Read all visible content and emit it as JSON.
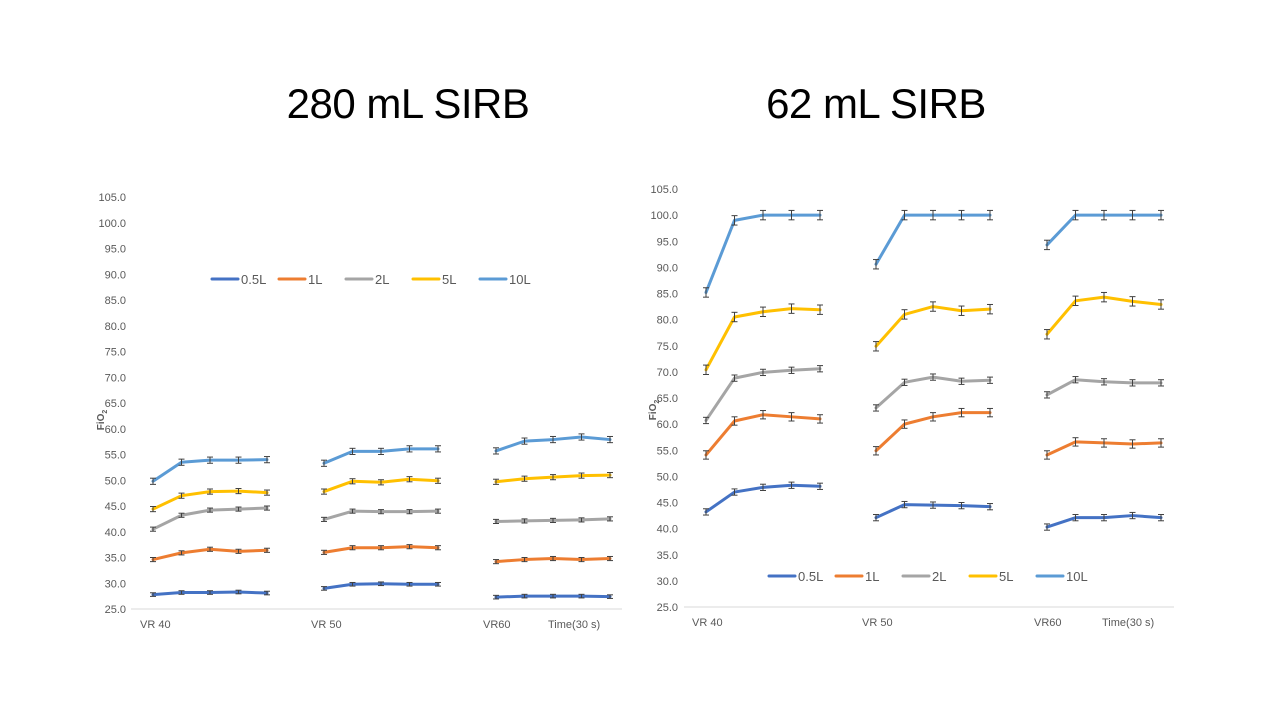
{
  "slide": {
    "title_left": "280 mL SIRB",
    "title_right": "62 mL SIRB"
  },
  "chart_data": [
    {
      "type": "line",
      "title": "280 mL SIRB",
      "ylabel": "FiO2",
      "ylim": [
        25,
        105
      ],
      "ytick_step": 5,
      "ytick_labels": [
        "25.0",
        "30.0",
        "35.0",
        "40.0",
        "45.0",
        "50.0",
        "55.0",
        "60.0",
        "65.0",
        "70.0",
        "75.0",
        "80.0",
        "85.0",
        "90.0",
        "95.0",
        "100.0",
        "105.0"
      ],
      "groups": [
        "VR 40",
        "VR 50",
        "VR60"
      ],
      "x_label": "Time(30 s)",
      "legend_position": "top-center",
      "grid": false,
      "error_bars": true,
      "series": [
        {
          "name": "0.5L",
          "color": "#4472c4",
          "values": [
            [
              27.8,
              28.2,
              28.2,
              28.3,
              28.1
            ],
            [
              29.0,
              29.8,
              29.9,
              29.8,
              29.8
            ],
            [
              27.3,
              27.5,
              27.5,
              27.5,
              27.4
            ]
          ],
          "error": 0.35
        },
        {
          "name": "1L",
          "color": "#ed7d31",
          "values": [
            [
              34.6,
              35.9,
              36.6,
              36.2,
              36.4
            ],
            [
              36.0,
              36.9,
              36.9,
              37.1,
              36.9
            ],
            [
              34.2,
              34.6,
              34.8,
              34.6,
              34.8
            ]
          ],
          "error": 0.4
        },
        {
          "name": "2L",
          "color": "#a5a5a5",
          "values": [
            [
              40.5,
              43.2,
              44.2,
              44.4,
              44.6
            ],
            [
              42.4,
              44.0,
              43.9,
              43.9,
              44.0
            ],
            [
              42.0,
              42.1,
              42.2,
              42.3,
              42.5
            ]
          ],
          "error": 0.4
        },
        {
          "name": "5L",
          "color": "#ffc000",
          "values": [
            [
              44.4,
              47.0,
              47.8,
              47.9,
              47.6
            ],
            [
              47.8,
              49.8,
              49.6,
              50.2,
              49.9
            ],
            [
              49.7,
              50.3,
              50.6,
              50.9,
              51.0
            ]
          ],
          "error": 0.5
        },
        {
          "name": "10L",
          "color": "#5b9bd5",
          "values": [
            [
              49.8,
              53.5,
              53.9,
              53.9,
              54.0
            ],
            [
              53.3,
              55.6,
              55.6,
              56.1,
              56.1
            ],
            [
              55.7,
              57.6,
              57.9,
              58.4,
              57.9
            ]
          ],
          "error": 0.6
        }
      ]
    },
    {
      "type": "line",
      "title": "62 mL SIRB",
      "ylabel": "FiO2",
      "ylim": [
        25,
        105
      ],
      "ytick_step": 5,
      "ytick_labels": [
        "25.0",
        "30.0",
        "35.0",
        "40.0",
        "45.0",
        "50.0",
        "55.0",
        "60.0",
        "65.0",
        "70.0",
        "75.0",
        "80.0",
        "85.0",
        "90.0",
        "95.0",
        "100.0",
        "105.0"
      ],
      "groups": [
        "VR 40",
        "VR 50",
        "VR60"
      ],
      "x_label": "Time(30 s)",
      "legend_position": "bottom-center",
      "grid": false,
      "error_bars": true,
      "series": [
        {
          "name": "0.5L",
          "color": "#4472c4",
          "values": [
            [
              43.2,
              47.0,
              47.9,
              48.3,
              48.1
            ],
            [
              42.1,
              44.6,
              44.5,
              44.4,
              44.2
            ],
            [
              40.3,
              42.1,
              42.1,
              42.5,
              42.1
            ]
          ],
          "error": 0.6
        },
        {
          "name": "1L",
          "color": "#ed7d31",
          "values": [
            [
              54.1,
              60.6,
              61.8,
              61.4,
              61.0
            ],
            [
              54.9,
              60.0,
              61.4,
              62.2,
              62.2
            ],
            [
              54.1,
              56.6,
              56.4,
              56.2,
              56.4
            ]
          ],
          "error": 0.8
        },
        {
          "name": "2L",
          "color": "#a5a5a5",
          "values": [
            [
              60.7,
              68.8,
              69.9,
              70.3,
              70.6
            ],
            [
              63.1,
              68.0,
              69.0,
              68.2,
              68.4
            ],
            [
              65.6,
              68.5,
              68.1,
              67.9,
              67.9
            ]
          ],
          "error": 0.6
        },
        {
          "name": "5L",
          "color": "#ffc000",
          "values": [
            [
              70.4,
              80.5,
              81.5,
              82.1,
              81.9
            ],
            [
              74.9,
              81.0,
              82.5,
              81.7,
              82.0
            ],
            [
              77.2,
              83.6,
              84.3,
              83.5,
              82.9
            ]
          ],
          "error": 0.9
        },
        {
          "name": "10L",
          "color": "#5b9bd5",
          "values": [
            [
              85.2,
              99.0,
              100.0,
              100.0,
              100.0
            ],
            [
              90.6,
              100.0,
              100.0,
              100.0,
              100.0
            ],
            [
              94.3,
              100.0,
              100.0,
              100.0,
              100.0
            ]
          ],
          "error": 0.9
        }
      ]
    }
  ]
}
